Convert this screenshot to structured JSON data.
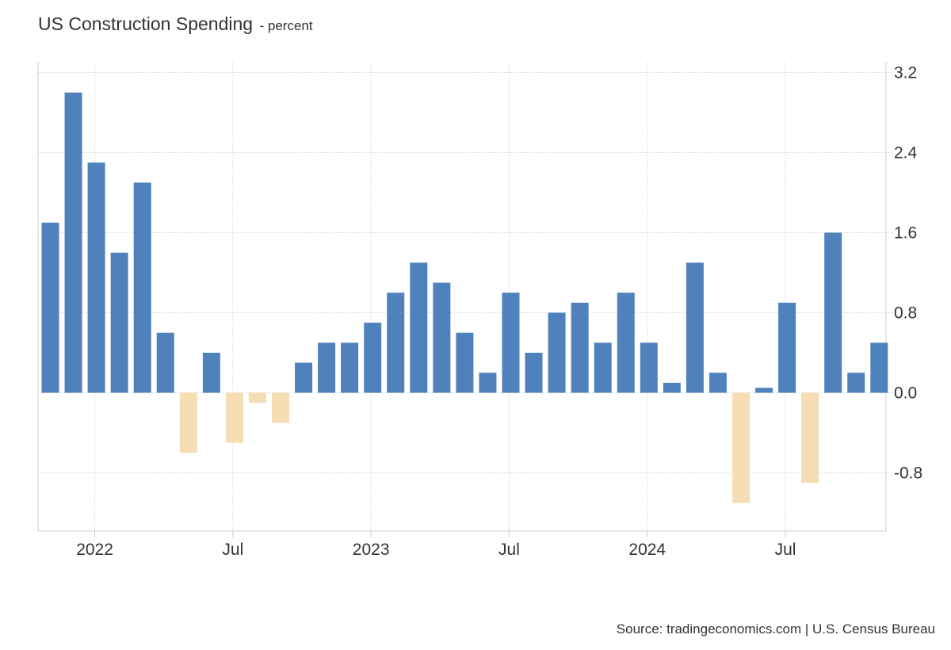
{
  "title": "US Construction Spending",
  "subtitle": "- percent",
  "source": "Source: tradingeconomics.com | U.S. Census Bureau",
  "colors": {
    "positive": "#4f81bd",
    "negative": "#f5deb3",
    "grid": "#d9d9d9",
    "axis": "#cccccc"
  },
  "chart_data": {
    "type": "bar",
    "title": "US Construction Spending",
    "subtitle": "percent",
    "ylim": [
      -1.4,
      3.25
    ],
    "y_ticks": [
      3.2,
      2.4,
      1.6,
      0.8,
      0.0,
      -0.8
    ],
    "y_tick_labels": [
      "3.2",
      "2.4",
      "1.6",
      "0.8",
      "0.0",
      "-0.8"
    ],
    "x_tick_labels": [
      "2022",
      "Jul",
      "2023",
      "Jul",
      "2024",
      "Jul"
    ],
    "x_tick_months": [
      "2022-01",
      "2022-07",
      "2023-01",
      "2023-07",
      "2024-01",
      "2024-07"
    ],
    "grid": true,
    "y_axis_side": "right",
    "categories": [
      "2021-12",
      "2022-01",
      "2022-02",
      "2022-03",
      "2022-04",
      "2022-05",
      "2022-06",
      "2022-07",
      "2022-08",
      "2022-09",
      "2022-10",
      "2022-11",
      "2022-12",
      "2023-01",
      "2023-02",
      "2023-03",
      "2023-04",
      "2023-05",
      "2023-06",
      "2023-07",
      "2023-08",
      "2023-09",
      "2023-10",
      "2023-11",
      "2023-12",
      "2024-01",
      "2024-02",
      "2024-03",
      "2024-04",
      "2024-05",
      "2024-06",
      "2024-07",
      "2024-08",
      "2024-09",
      "2024-10",
      "2024-11",
      "2024-12"
    ],
    "values": [
      1.7,
      3.0,
      2.3,
      1.4,
      2.1,
      0.6,
      -0.6,
      0.4,
      -0.5,
      -0.1,
      -0.3,
      0.3,
      0.5,
      0.5,
      0.7,
      1.0,
      1.3,
      1.1,
      0.6,
      0.2,
      1.0,
      0.4,
      0.8,
      0.9,
      0.5,
      1.0,
      0.5,
      0.1,
      1.3,
      0.2,
      -1.1,
      0.05,
      0.9,
      -0.9,
      1.6,
      0.2,
      0.5
    ]
  }
}
